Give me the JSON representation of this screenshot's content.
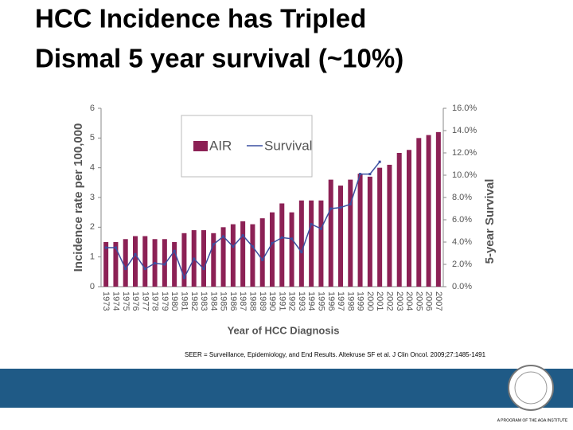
{
  "title_lines": [
    "HCC Incidence has Tripled",
    "Dismal 5 year survival (~10%)"
  ],
  "citation": "SEER = Surveillance, Epidemiology, and End Results. Altekruse SF et al. J Clin Oncol. 2009;27:1485-1491",
  "footer": "A PROGRAM OF THE AGA INSTITUTE",
  "chart_data": {
    "type": "bar",
    "x_label": "Year of HCC Diagnosis",
    "y_label": "Incidence rate per 100,000",
    "y2_label": "5-year Survival",
    "categories": [
      "1973",
      "1974",
      "1975",
      "1976",
      "1977",
      "1978",
      "1979",
      "1980",
      "1981",
      "1982",
      "1983",
      "1984",
      "1985",
      "1986",
      "1987",
      "1988",
      "1989",
      "1990",
      "1991",
      "1992",
      "1993",
      "1994",
      "1995",
      "1996",
      "1997",
      "1998",
      "1999",
      "2000",
      "2001",
      "2002",
      "2003",
      "2004",
      "2005",
      "2006",
      "2007"
    ],
    "series": [
      {
        "name": "AIR",
        "type": "bar",
        "color": "#8c2155",
        "values": [
          1.5,
          1.5,
          1.6,
          1.7,
          1.7,
          1.6,
          1.6,
          1.5,
          1.8,
          1.9,
          1.9,
          1.8,
          2.0,
          2.1,
          2.2,
          2.1,
          2.3,
          2.5,
          2.8,
          2.5,
          2.9,
          2.9,
          2.9,
          3.6,
          3.4,
          3.6,
          3.8,
          3.7,
          4.0,
          4.1,
          4.5,
          4.6,
          5.0,
          5.1,
          5.2
        ]
      },
      {
        "name": "Survival",
        "type": "line",
        "axis": "y2",
        "color": "#3a4fa0",
        "values": [
          3.5,
          3.5,
          1.6,
          2.9,
          1.6,
          2.1,
          2.0,
          3.2,
          0.8,
          2.5,
          1.6,
          3.8,
          4.5,
          3.6,
          4.6,
          3.6,
          2.4,
          3.9,
          4.4,
          4.3,
          3.1,
          5.6,
          5.2,
          7.0,
          7.1,
          7.4,
          10.1,
          10.1,
          11.2,
          null,
          null,
          null,
          null,
          null,
          null
        ]
      }
    ],
    "ylim": [
      0,
      6
    ],
    "yticks": [
      0,
      1,
      2,
      3,
      4,
      5,
      6
    ],
    "y2lim": [
      0,
      16
    ],
    "y2ticks": [
      {
        "value": 0,
        "label": "0.0%"
      },
      {
        "value": 2,
        "label": "2.0%"
      },
      {
        "value": 4,
        "label": "4.0%"
      },
      {
        "value": 6,
        "label": "6.0%"
      },
      {
        "value": 8,
        "label": "8.0%"
      },
      {
        "value": 10,
        "label": "10.0%"
      },
      {
        "value": 12,
        "label": "12.0%"
      },
      {
        "value": 14,
        "label": "14.0%"
      },
      {
        "value": 16,
        "label": "16.0%"
      }
    ],
    "legend": "top-left"
  }
}
